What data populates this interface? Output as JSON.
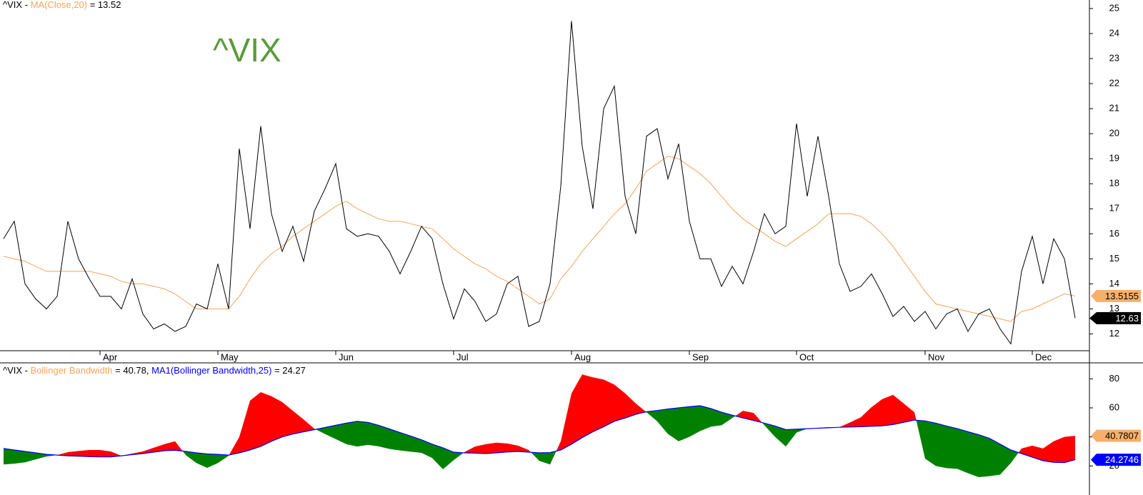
{
  "chart_data": [
    {
      "type": "line",
      "header": {
        "sep": " - ",
        "suffix": " = 13.52"
      },
      "watermark": "^VIX",
      "categories": [
        null,
        null,
        null,
        null,
        null,
        null,
        null,
        null,
        null,
        "Apr",
        null,
        null,
        null,
        null,
        null,
        null,
        null,
        null,
        null,
        null,
        "May",
        null,
        null,
        null,
        null,
        null,
        null,
        null,
        null,
        null,
        null,
        "Jun",
        null,
        null,
        null,
        null,
        null,
        null,
        null,
        null,
        null,
        null,
        "Jul",
        null,
        null,
        null,
        null,
        null,
        null,
        null,
        null,
        null,
        null,
        "Aug",
        null,
        null,
        null,
        null,
        null,
        null,
        null,
        null,
        null,
        null,
        "Sep",
        null,
        null,
        null,
        null,
        null,
        null,
        null,
        null,
        null,
        "Oct",
        null,
        null,
        null,
        null,
        null,
        null,
        null,
        null,
        null,
        null,
        null,
        "Nov",
        null,
        null,
        null,
        null,
        null,
        null,
        null,
        null,
        null,
        "Dec",
        null,
        null,
        null,
        null
      ],
      "series": [
        {
          "name": "^VIX",
          "color": "#000000",
          "label_color": "#000000",
          "values": [
            15.8,
            16.5,
            14.0,
            13.4,
            13.0,
            13.5,
            16.5,
            15.0,
            14.2,
            13.5,
            13.5,
            13.0,
            14.2,
            12.8,
            12.2,
            12.4,
            12.1,
            12.3,
            13.2,
            13.0,
            14.8,
            13.0,
            19.4,
            16.2,
            20.3,
            16.8,
            15.3,
            16.3,
            14.9,
            16.9,
            17.8,
            18.8,
            16.2,
            15.9,
            16.0,
            15.9,
            15.3,
            14.4,
            15.3,
            16.3,
            15.8,
            14.0,
            12.6,
            13.8,
            13.3,
            12.5,
            12.8,
            14.0,
            14.3,
            12.3,
            12.5,
            14.0,
            17.9,
            24.5,
            19.5,
            17.0,
            21.0,
            21.9,
            17.5,
            16.0,
            19.9,
            20.2,
            18.2,
            19.6,
            16.5,
            15.0,
            15.0,
            13.9,
            14.7,
            14.0,
            15.3,
            16.8,
            16.0,
            16.3,
            20.4,
            17.5,
            19.9,
            17.5,
            14.8,
            13.7,
            13.9,
            14.4,
            13.6,
            12.7,
            13.1,
            12.5,
            12.9,
            12.2,
            12.8,
            13.0,
            12.1,
            12.8,
            13.0,
            12.2,
            11.6,
            14.5,
            15.9,
            14.0,
            15.8,
            15.0,
            12.63
          ]
        },
        {
          "name": "MA(Close,20)",
          "color": "#f7a35c",
          "label_color": "#f7a35c",
          "values": [
            15.1,
            15.0,
            14.9,
            14.7,
            14.5,
            14.5,
            14.5,
            14.5,
            14.5,
            14.4,
            14.3,
            14.1,
            14.0,
            14.0,
            13.9,
            13.8,
            13.6,
            13.3,
            13.0,
            13.0,
            13.0,
            13.0,
            13.5,
            14.2,
            14.8,
            15.2,
            15.5,
            15.9,
            16.2,
            16.5,
            16.8,
            17.1,
            17.3,
            17.0,
            16.8,
            16.6,
            16.5,
            16.5,
            16.4,
            16.3,
            16.2,
            15.8,
            15.4,
            15.1,
            14.8,
            14.6,
            14.3,
            14.1,
            13.8,
            13.5,
            13.2,
            13.4,
            14.2,
            14.7,
            15.3,
            15.8,
            16.3,
            16.8,
            17.2,
            17.8,
            18.5,
            18.8,
            19.1,
            19.0,
            18.7,
            18.4,
            18.0,
            17.5,
            17.0,
            16.6,
            16.3,
            16.0,
            15.7,
            15.5,
            15.8,
            16.1,
            16.4,
            16.8,
            16.8,
            16.8,
            16.7,
            16.4,
            16.0,
            15.5,
            14.9,
            14.3,
            13.7,
            13.2,
            13.1,
            13.0,
            12.9,
            12.8,
            12.7,
            12.6,
            12.5,
            12.9,
            13.0,
            13.2,
            13.4,
            13.6,
            13.5155
          ]
        }
      ],
      "ylim": [
        11.33,
        25.34
      ],
      "yticks": [
        12,
        13,
        14,
        15,
        16,
        17,
        18,
        19,
        20,
        21,
        22,
        23,
        24,
        25
      ]
    },
    {
      "type": "difference",
      "header": {
        "sep": " - ",
        "mid": " = 40.78, ",
        "suffix": " = 24.27",
        "prefix": "^VIX"
      },
      "series": [
        {
          "name": "Bollinger Bandwidth",
          "color": "#f7a35c",
          "label_color": "#f7a35c",
          "values": [
            21,
            21.6,
            22.5,
            24.5,
            26.5,
            27.5,
            29.5,
            30.3,
            31,
            31,
            30,
            27,
            28.5,
            30,
            32.5,
            35,
            37,
            27.5,
            22,
            18.7,
            22,
            27,
            40,
            65,
            70.8,
            68,
            64,
            58,
            52,
            45.7,
            42,
            38.5,
            35,
            33.4,
            34.5,
            33.5,
            31.7,
            30.7,
            29.8,
            29,
            25.5,
            17.7,
            24,
            29.5,
            33.4,
            35,
            36,
            35.5,
            34,
            31,
            23.5,
            21,
            37,
            70,
            83,
            81,
            79.5,
            76,
            70,
            63,
            57,
            50.7,
            42,
            37,
            40,
            44,
            47,
            48,
            53,
            58,
            56.5,
            48,
            40,
            33.4,
            43,
            45.7,
            46.2,
            46.7,
            46.7,
            50,
            53.5,
            60.5,
            66,
            69,
            63,
            57,
            25,
            20,
            18.5,
            18,
            15,
            12.3,
            13,
            14,
            22,
            32,
            34,
            32,
            37,
            40,
            40.7807
          ]
        },
        {
          "name": "MA1(Bollinger Bandwidth,25)",
          "color": "#0000ff",
          "label_color": "#0000ff",
          "values": [
            32,
            31,
            30,
            29,
            28,
            27.5,
            27,
            26.7,
            26.4,
            26.2,
            26.2,
            27,
            27.8,
            28.5,
            29.5,
            30.5,
            30.8,
            30,
            29,
            28.3,
            28,
            27.5,
            29,
            31,
            33.5,
            37,
            40,
            42,
            43.5,
            45,
            46.5,
            48,
            49.5,
            50.7,
            50,
            48,
            45.5,
            43,
            40.5,
            38,
            35,
            32.5,
            29.5,
            29,
            28.8,
            28.5,
            29,
            29.6,
            30,
            29.5,
            29,
            29.2,
            31,
            35,
            39.5,
            43.5,
            47,
            50.7,
            53,
            55.5,
            57.3,
            58.2,
            59.2,
            60,
            60.8,
            61.5,
            59.5,
            57,
            55,
            53,
            51.3,
            49.5,
            47.5,
            45,
            45.3,
            45.7,
            46,
            46.3,
            46.6,
            46.8,
            47,
            47.3,
            47.6,
            48.5,
            50,
            51.6,
            51,
            49.5,
            47.5,
            45.7,
            43.5,
            41.5,
            39,
            35,
            31,
            28.5,
            26,
            23.6,
            22.5,
            22.3,
            24.2746
          ]
        }
      ],
      "above_color": "#ff0000",
      "below_color": "#008000",
      "ylim": [
        0,
        90
      ],
      "yticks": [
        20,
        40,
        60,
        80
      ]
    }
  ]
}
